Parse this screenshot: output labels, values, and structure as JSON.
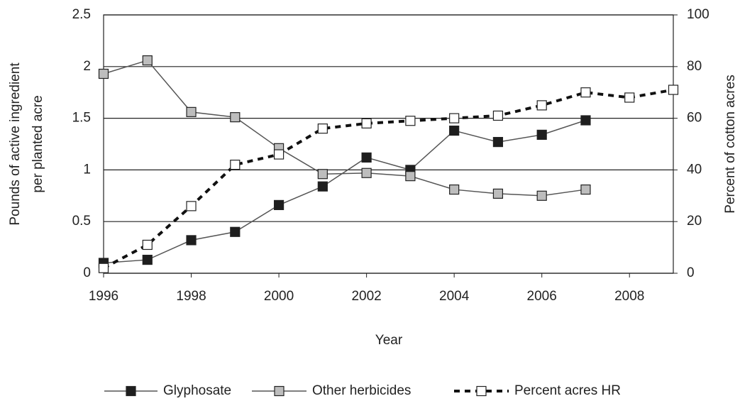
{
  "chart_data": {
    "type": "line",
    "xlabel": "Year",
    "ylabel": [
      "Pounds of active ingredient",
      "per planted acre"
    ],
    "y2label": "Percent of cotton acres",
    "x": [
      1996,
      1997,
      1998,
      1999,
      2000,
      2001,
      2002,
      2003,
      2004,
      2005,
      2006,
      2007,
      2008,
      2009
    ],
    "xlim": [
      1996,
      2009
    ],
    "xticks": [
      1996,
      1998,
      2000,
      2002,
      2004,
      2006,
      2008
    ],
    "ylim": [
      0,
      2.5
    ],
    "yticks": [
      0,
      0.5,
      1,
      1.5,
      2,
      2.5
    ],
    "y2lim": [
      0,
      100
    ],
    "y2ticks": [
      0,
      20,
      40,
      60,
      80,
      100
    ],
    "grid": true,
    "legend": "bottom",
    "series": [
      {
        "name": "Glyphosate",
        "color": "#1e1e1e",
        "line_color": "#555555",
        "line_style": "solid",
        "values": [
          0.1,
          0.13,
          0.32,
          0.4,
          0.66,
          0.84,
          1.12,
          1.0,
          1.38,
          1.27,
          1.34,
          1.48,
          null,
          null
        ]
      },
      {
        "name": "Other herbicides",
        "color": "#bdbdbd",
        "line_color": "#555555",
        "line_style": "solid",
        "values": [
          1.93,
          2.06,
          1.56,
          1.51,
          1.21,
          0.96,
          0.97,
          0.94,
          0.81,
          0.77,
          0.75,
          0.81,
          null,
          null
        ]
      },
      {
        "name": "Percent acres HR",
        "color": "#ffffff",
        "line_color": "#111111",
        "line_style": "dashed",
        "axis": "y2",
        "values": [
          2,
          11,
          26,
          42,
          46,
          56,
          58,
          59,
          60,
          61,
          65,
          70,
          68,
          71
        ]
      }
    ]
  }
}
